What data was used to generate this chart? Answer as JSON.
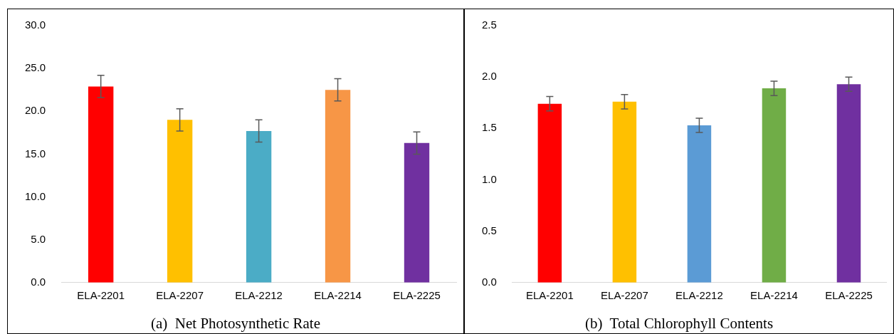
{
  "chart_data": [
    {
      "type": "bar",
      "title": "(a)  Net Photosynthetic Rate",
      "categories": [
        "ELA-2201",
        "ELA-2207",
        "ELA-2212",
        "ELA-2214",
        "ELA-2225"
      ],
      "values": [
        22.9,
        19.0,
        17.7,
        22.5,
        16.3
      ],
      "colors": [
        "#ff0000",
        "#ffc000",
        "#4bacc6",
        "#f79646",
        "#7030a0"
      ],
      "errors": [
        1.3,
        1.3,
        1.3,
        1.3,
        1.3
      ],
      "ylim": [
        0,
        30
      ],
      "yticks": [
        {
          "value": 0,
          "label": "0.0"
        },
        {
          "value": 5,
          "label": "5.0"
        },
        {
          "value": 10,
          "label": "10.0"
        },
        {
          "value": 15,
          "label": "15.0"
        },
        {
          "value": 20,
          "label": "20.0"
        },
        {
          "value": 25,
          "label": "25.0"
        },
        {
          "value": 30,
          "label": "30.0"
        }
      ]
    },
    {
      "type": "bar",
      "title": "(b)  Total Chlorophyll Contents",
      "categories": [
        "ELA-2201",
        "ELA-2207",
        "ELA-2212",
        "ELA-2214",
        "ELA-2225"
      ],
      "values": [
        1.74,
        1.76,
        1.53,
        1.89,
        1.93
      ],
      "colors": [
        "#ff0000",
        "#ffc000",
        "#5b9bd5",
        "#70ad47",
        "#7030a0"
      ],
      "errors": [
        0.07,
        0.07,
        0.07,
        0.07,
        0.07
      ],
      "ylim": [
        0,
        2.5
      ],
      "yticks": [
        {
          "value": 0,
          "label": "0.0"
        },
        {
          "value": 0.5,
          "label": "0.5"
        },
        {
          "value": 1,
          "label": "1.0"
        },
        {
          "value": 1.5,
          "label": "1.5"
        },
        {
          "value": 2,
          "label": "2.0"
        },
        {
          "value": 2.5,
          "label": "2.5"
        }
      ]
    }
  ]
}
